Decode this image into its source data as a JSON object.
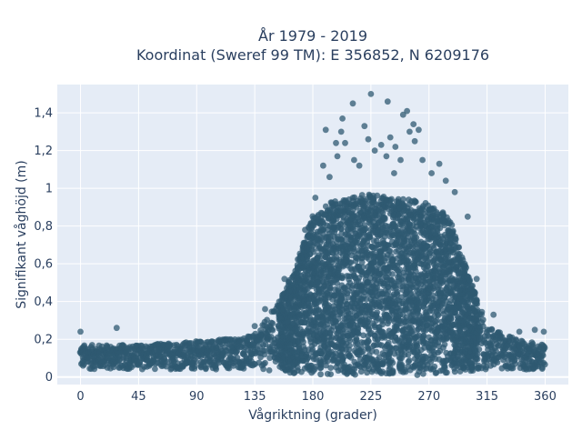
{
  "chart_data": {
    "type": "scatter",
    "title_lines": [
      "År 1979 - 2019",
      "Koordinat (Sweref 99 TM): E 356852, N 6209176"
    ],
    "xlabel": "Vågriktning (grader)",
    "ylabel": "Signifikant våghöjd (m)",
    "xlim": [
      -18,
      378
    ],
    "ylim": [
      -0.04,
      1.55
    ],
    "x_ticks": [
      0,
      45,
      90,
      135,
      180,
      225,
      270,
      315,
      360
    ],
    "x_tick_labels": [
      "0",
      "45",
      "90",
      "135",
      "180",
      "225",
      "270",
      "315",
      "360"
    ],
    "y_ticks": [
      0,
      0.2,
      0.4,
      0.6,
      0.8,
      1.0,
      1.2,
      1.4
    ],
    "y_tick_labels": [
      "0",
      "0,2",
      "0,4",
      "0,6",
      "0,8",
      "1",
      "1,2",
      "1,4"
    ],
    "grid": true,
    "legend": false,
    "marker_color": "#2f5a72",
    "plot_bg_color": "#e5ecf6",
    "distribution_envelope": {
      "direction_deg": [
        0,
        45,
        90,
        135,
        150,
        165,
        180,
        195,
        210,
        225,
        240,
        255,
        270,
        285,
        300,
        315,
        330,
        345,
        360
      ],
      "typical_min_m": [
        0.04,
        0.04,
        0.04,
        0.04,
        0.03,
        0.02,
        0.01,
        0.01,
        0.01,
        0.01,
        0.01,
        0.01,
        0.01,
        0.02,
        0.03,
        0.04,
        0.04,
        0.04,
        0.04
      ],
      "typical_max_m": [
        0.17,
        0.17,
        0.19,
        0.22,
        0.36,
        0.55,
        0.85,
        0.93,
        0.95,
        0.98,
        0.95,
        0.95,
        0.92,
        0.85,
        0.55,
        0.27,
        0.22,
        0.19,
        0.17
      ]
    },
    "outlier_points": [
      {
        "x": 0,
        "y": 0.24
      },
      {
        "x": 28,
        "y": 0.26
      },
      {
        "x": 135,
        "y": 0.27
      },
      {
        "x": 143,
        "y": 0.36
      },
      {
        "x": 158,
        "y": 0.52
      },
      {
        "x": 174,
        "y": 0.78
      },
      {
        "x": 182,
        "y": 0.95
      },
      {
        "x": 188,
        "y": 1.12
      },
      {
        "x": 190,
        "y": 1.31
      },
      {
        "x": 193,
        "y": 1.06
      },
      {
        "x": 198,
        "y": 1.24
      },
      {
        "x": 199,
        "y": 1.17
      },
      {
        "x": 202,
        "y": 1.3
      },
      {
        "x": 203,
        "y": 1.37
      },
      {
        "x": 205,
        "y": 1.24
      },
      {
        "x": 211,
        "y": 1.45
      },
      {
        "x": 212,
        "y": 1.15
      },
      {
        "x": 216,
        "y": 1.12
      },
      {
        "x": 220,
        "y": 1.33
      },
      {
        "x": 223,
        "y": 1.26
      },
      {
        "x": 225,
        "y": 1.5
      },
      {
        "x": 228,
        "y": 1.2
      },
      {
        "x": 233,
        "y": 1.23
      },
      {
        "x": 237,
        "y": 1.17
      },
      {
        "x": 238,
        "y": 1.46
      },
      {
        "x": 240,
        "y": 1.27
      },
      {
        "x": 243,
        "y": 1.08
      },
      {
        "x": 244,
        "y": 1.22
      },
      {
        "x": 248,
        "y": 1.15
      },
      {
        "x": 250,
        "y": 1.39
      },
      {
        "x": 253,
        "y": 1.41
      },
      {
        "x": 255,
        "y": 1.3
      },
      {
        "x": 258,
        "y": 1.34
      },
      {
        "x": 259,
        "y": 1.25
      },
      {
        "x": 262,
        "y": 1.31
      },
      {
        "x": 265,
        "y": 1.15
      },
      {
        "x": 272,
        "y": 1.08
      },
      {
        "x": 278,
        "y": 1.13
      },
      {
        "x": 283,
        "y": 1.04
      },
      {
        "x": 290,
        "y": 0.98
      },
      {
        "x": 300,
        "y": 0.85
      },
      {
        "x": 307,
        "y": 0.52
      },
      {
        "x": 320,
        "y": 0.33
      },
      {
        "x": 340,
        "y": 0.24
      },
      {
        "x": 352,
        "y": 0.25
      },
      {
        "x": 359,
        "y": 0.24
      }
    ]
  }
}
